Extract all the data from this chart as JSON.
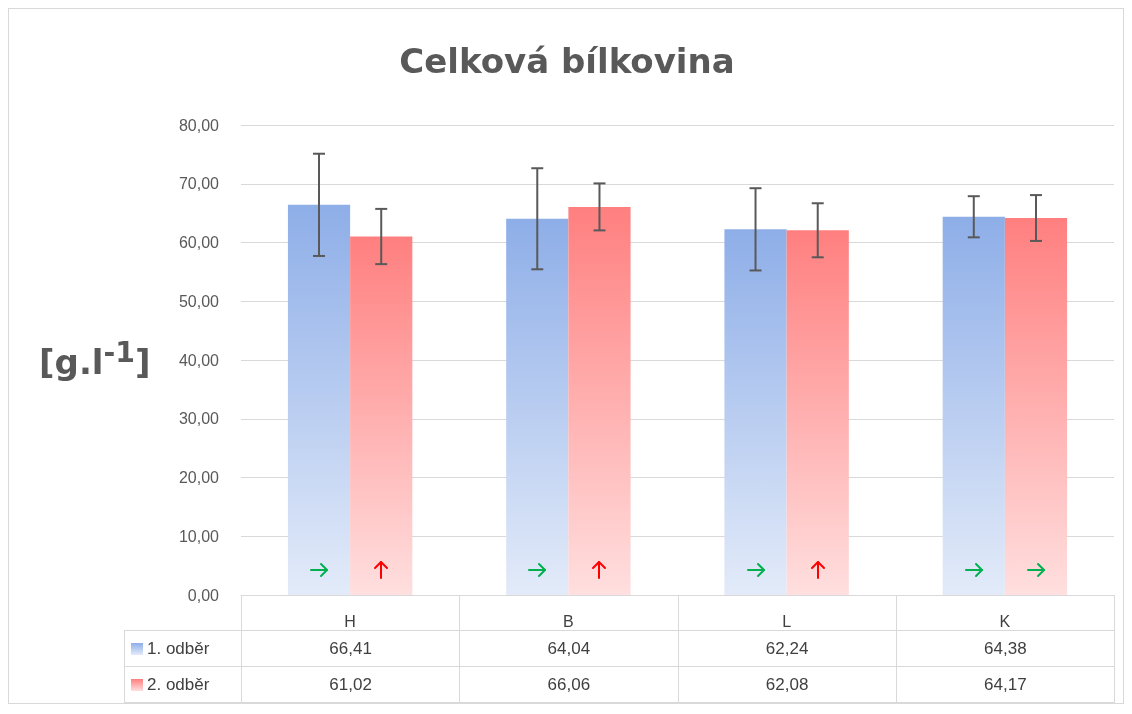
{
  "chart_data": {
    "type": "bar",
    "title": "Celková bílkovina",
    "ylabel": "[g.l$^{-1}$]",
    "categories": [
      "H",
      "B",
      "L",
      "K"
    ],
    "series": [
      {
        "name": "1. odběr",
        "color": "#8eaee8",
        "values": [
          66.41,
          64.04,
          62.24,
          64.38
        ],
        "errors": [
          8.7,
          8.6,
          7.0,
          3.5
        ],
        "value_labels": [
          "66,41",
          "64,04",
          "62,24",
          "64,38"
        ]
      },
      {
        "name": "2. odběr",
        "color": "#ff7f7f",
        "values": [
          61.02,
          66.06,
          62.08,
          64.17
        ],
        "errors": [
          4.7,
          4.0,
          4.6,
          3.9
        ],
        "value_labels": [
          "61,02",
          "66,06",
          "62,08",
          "64,17"
        ]
      }
    ],
    "ylim": [
      0,
      80
    ],
    "yticks": [
      {
        "value": 0,
        "label": "0,00"
      },
      {
        "value": 10,
        "label": "10,00"
      },
      {
        "value": 20,
        "label": "20,00"
      },
      {
        "value": 30,
        "label": "30,00"
      },
      {
        "value": 40,
        "label": "40,00"
      },
      {
        "value": 50,
        "label": "50,00"
      },
      {
        "value": 60,
        "label": "60,00"
      },
      {
        "value": 70,
        "label": "70,00"
      },
      {
        "value": 80,
        "label": "80,00"
      }
    ],
    "grid": "y",
    "legend": "bottom"
  }
}
